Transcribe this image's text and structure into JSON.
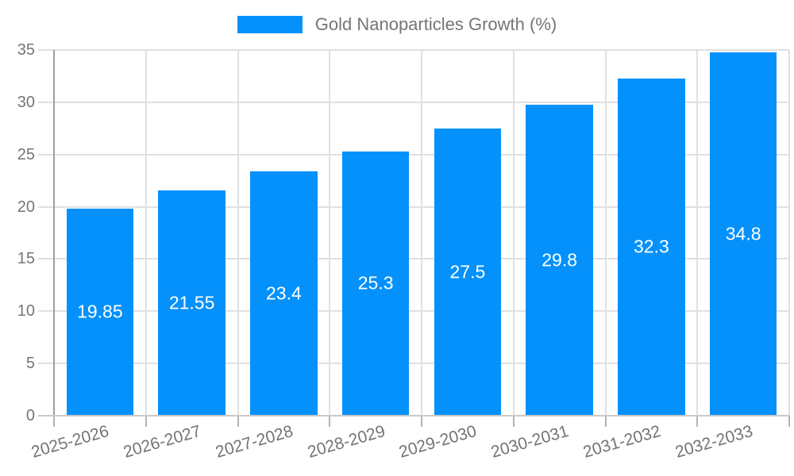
{
  "legend": {
    "label": "Gold Nanoparticles Growth (%)",
    "position": "top"
  },
  "chart_data": {
    "type": "bar",
    "title": "",
    "xlabel": "",
    "ylabel": "",
    "categories": [
      "2025-2026",
      "2026-2027",
      "2027-2028",
      "2028-2029",
      "2029-2030",
      "2030-2031",
      "2031-2032",
      "2032-2033"
    ],
    "series": [
      {
        "name": "Gold Nanoparticles Growth (%)",
        "values": [
          19.85,
          21.55,
          23.4,
          25.3,
          27.5,
          29.8,
          32.3,
          34.8
        ],
        "value_labels": [
          "19.85",
          "21.55",
          "23.4",
          "25.3",
          "27.5",
          "29.8",
          "32.3",
          "34.8"
        ]
      }
    ],
    "ylim": [
      0,
      35
    ],
    "yticks": [
      0,
      5,
      10,
      15,
      20,
      25,
      30,
      35
    ],
    "grid": true,
    "x_label_rotation_deg": -16,
    "legend_position": "top",
    "colors": {
      "bar": "#0591fb",
      "value_label": "#ffffff",
      "axis_text": "#757575",
      "gridline": "#e0e0e0",
      "y_axis_line": "#9e9e9e",
      "x_axis_line": "#c9c9c9",
      "tick": "#b3b3b3"
    }
  }
}
